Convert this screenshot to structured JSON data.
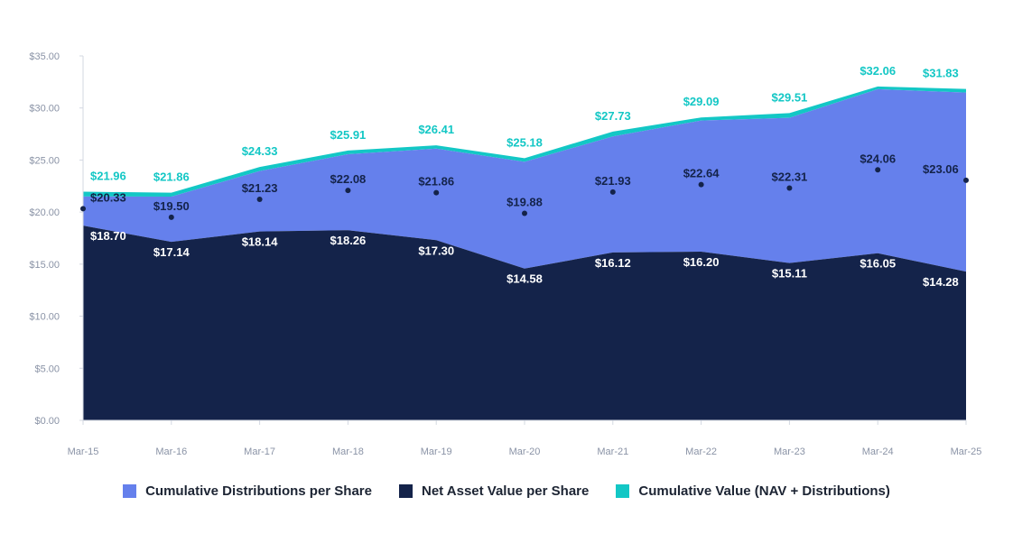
{
  "chart_data": {
    "type": "area",
    "title": "",
    "xlabel": "",
    "ylabel": "",
    "x": [
      "Mar-15",
      "Mar-16",
      "Mar-17",
      "Mar-18",
      "Mar-19",
      "Mar-20",
      "Mar-21",
      "Mar-22",
      "Mar-23",
      "Mar-24",
      "Mar-25"
    ],
    "yticks": [
      "$0.00",
      "$5.00",
      "$10.00",
      "$15.00",
      "$20.00",
      "$25.00",
      "$30.00",
      "$35.00"
    ],
    "ylim": [
      0,
      35
    ],
    "stacked": true,
    "grid": false,
    "legend_position": "bottom",
    "series": [
      {
        "name": "Net Asset Value per Share",
        "color": "#14234a",
        "values": [
          18.7,
          17.14,
          18.14,
          18.26,
          17.3,
          14.58,
          16.12,
          16.2,
          15.11,
          16.05,
          14.28
        ],
        "labels": [
          "$18.70",
          "$17.14",
          "$18.14",
          "$18.26",
          "$17.30",
          "$14.58",
          "$16.12",
          "$16.20",
          "$15.11",
          "$16.05",
          "$14.28"
        ]
      },
      {
        "name": "Cumulative Distributions per Share",
        "color": "#6580ec",
        "values": [
          2.8,
          4.35,
          5.8,
          7.3,
          8.8,
          10.25,
          11.15,
          12.6,
          13.95,
          15.75,
          17.2
        ]
      },
      {
        "name": "Cumulative Value (NAV + Distributions)",
        "color": "#13c7c5",
        "totals": [
          21.96,
          21.86,
          24.33,
          25.91,
          26.41,
          25.18,
          27.73,
          29.09,
          29.51,
          32.06,
          31.83
        ],
        "labels": [
          "$21.96",
          "$21.86",
          "$24.33",
          "$25.91",
          "$26.41",
          "$25.18",
          "$27.73",
          "$29.09",
          "$29.51",
          "$32.06",
          "$31.83"
        ]
      }
    ],
    "markers": {
      "name": "",
      "color": "#14234a",
      "values": [
        20.33,
        19.5,
        21.23,
        22.08,
        21.86,
        19.88,
        21.93,
        22.64,
        22.31,
        24.06,
        23.06
      ],
      "labels": [
        "$20.33",
        "$19.50",
        "$21.23",
        "$22.08",
        "$21.86",
        "$19.88",
        "$21.93",
        "$22.64",
        "$22.31",
        "$24.06",
        "$23.06"
      ]
    }
  },
  "legend": {
    "items": [
      {
        "label": "Cumulative Distributions per Share",
        "color": "#6580ec"
      },
      {
        "label": "Net Asset Value per Share",
        "color": "#14234a"
      },
      {
        "label": "Cumulative Value (NAV + Distributions)",
        "color": "#13c7c5"
      }
    ]
  }
}
